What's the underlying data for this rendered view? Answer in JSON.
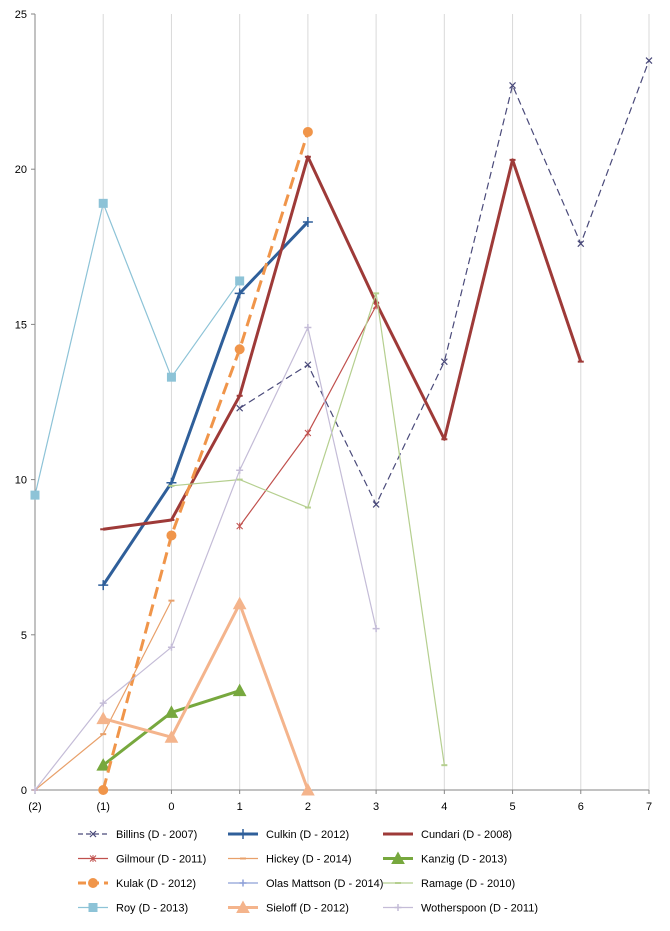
{
  "chart_data": {
    "type": "line",
    "title": "",
    "xlabel": "",
    "ylabel": "",
    "x": [
      "(2)",
      "(1)",
      "0",
      "1",
      "2",
      "3",
      "4",
      "5",
      "6",
      "7"
    ],
    "y_ticks": [
      "0",
      "5",
      "10",
      "15",
      "20",
      "25"
    ],
    "ylim": [
      0,
      25
    ],
    "grid": "vertical",
    "legend_position": "bottom",
    "series": [
      {
        "name": "Billins (D - 2007)",
        "color": "#4a4a7a",
        "dash": "dashed",
        "marker": "x",
        "values": [
          null,
          null,
          null,
          12.3,
          13.7,
          9.2,
          13.8,
          22.7,
          17.6,
          23.5
        ]
      },
      {
        "name": "Culkin (D - 2012)",
        "color": "#2f5f9a",
        "dash": "solid",
        "marker": "plus",
        "thick": true,
        "values": [
          null,
          6.6,
          9.9,
          16.0,
          18.3,
          null,
          null,
          null,
          null,
          null
        ]
      },
      {
        "name": "Cundari (D - 2008)",
        "color": "#9e3a38",
        "dash": "solid",
        "marker": "dash",
        "thick": true,
        "values": [
          null,
          8.4,
          8.7,
          12.7,
          20.4,
          15.7,
          11.3,
          20.3,
          13.8,
          null
        ]
      },
      {
        "name": "Gilmour (D - 2011)",
        "color": "#c0504d",
        "dash": "solid",
        "marker": "star",
        "values": [
          null,
          null,
          null,
          8.5,
          11.5,
          15.6,
          null,
          null,
          null,
          null
        ]
      },
      {
        "name": "Hickey (D - 2014)",
        "color": "#e8a06a",
        "dash": "solid",
        "marker": "dash",
        "values": [
          0,
          1.8,
          6.1,
          null,
          null,
          null,
          null,
          null,
          null,
          null
        ]
      },
      {
        "name": "Kanzig (D - 2013)",
        "color": "#77a83e",
        "dash": "solid",
        "marker": "triangle",
        "thick": true,
        "values": [
          null,
          0.8,
          2.5,
          3.2,
          null,
          null,
          null,
          null,
          null,
          null
        ]
      },
      {
        "name": "Kulak (D - 2012)",
        "color": "#f0954a",
        "dash": "dashed",
        "marker": "circle",
        "thick": true,
        "values": [
          null,
          0.0,
          8.2,
          14.2,
          21.2,
          null,
          null,
          null,
          null,
          null
        ]
      },
      {
        "name": "Olas Mattson (D - 2014)",
        "color": "#8ea0d8",
        "dash": "solid",
        "marker": "plus",
        "values": [
          null,
          null,
          null,
          null,
          null,
          null,
          null,
          null,
          null,
          null
        ]
      },
      {
        "name": "Ramage (D - 2010)",
        "color": "#b5cf8f",
        "dash": "solid",
        "marker": "dash",
        "values": [
          null,
          null,
          9.8,
          10.0,
          9.1,
          16.0,
          0.8,
          null,
          null,
          null
        ]
      },
      {
        "name": "Roy (D - 2013)",
        "color": "#8dc3d7",
        "dash": "solid",
        "marker": "square",
        "values": [
          9.5,
          18.9,
          13.3,
          16.4,
          null,
          null,
          null,
          null,
          null,
          null
        ]
      },
      {
        "name": "Sieloff (D - 2012)",
        "color": "#f4b48c",
        "dash": "solid",
        "marker": "triangle",
        "thick": true,
        "values": [
          null,
          2.3,
          1.7,
          6.0,
          0.0,
          null,
          null,
          null,
          null,
          null
        ]
      },
      {
        "name": "Wotherspoon (D - 2011)",
        "color": "#c4bcd7",
        "dash": "solid",
        "marker": "plus",
        "values": [
          0,
          2.8,
          4.6,
          10.3,
          14.9,
          5.2,
          null,
          null,
          null,
          null
        ]
      }
    ]
  }
}
